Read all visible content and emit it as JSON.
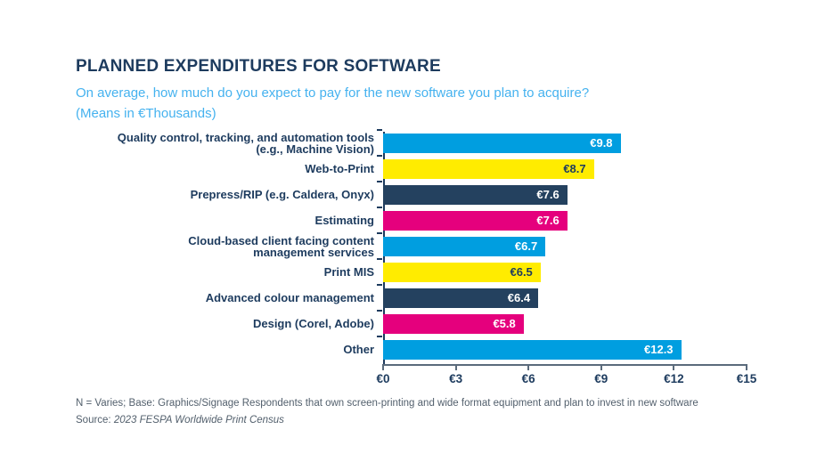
{
  "header": {
    "title": "PLANNED EXPENDITURES FOR SOFTWARE",
    "subtitle": "On average, how much do you expect to pay for the new software you plan to acquire?",
    "subtitle_units": "(Means in €Thousands)"
  },
  "chart_data": {
    "type": "bar",
    "orientation": "horizontal",
    "title": "PLANNED EXPENDITURES FOR SOFTWARE",
    "subtitle": "On average, how much do you expect to pay for the new software you plan to acquire? (Means in €Thousands)",
    "xlabel": "",
    "ylabel": "",
    "xlim": [
      0,
      15
    ],
    "x_ticks": [
      "€0",
      "€3",
      "€6",
      "€9",
      "€12",
      "€15"
    ],
    "grid": false,
    "legend": false,
    "categories": [
      "Quality control, tracking, and automation tools (e.g., Machine Vision)",
      "Web-to-Print",
      "Prepress/RIP (e.g. Caldera, Onyx)",
      "Estimating",
      "Cloud-based client facing content management services",
      "Print MIS",
      "Advanced colour management",
      "Design (Corel, Adobe)",
      "Other"
    ],
    "category_lines": [
      [
        "Quality control, tracking, and automation tools",
        "(e.g., Machine Vision)"
      ],
      [
        "Web-to-Print"
      ],
      [
        "Prepress/RIP (e.g. Caldera, Onyx)"
      ],
      [
        "Estimating"
      ],
      [
        "Cloud-based client facing content",
        "management services"
      ],
      [
        "Print MIS"
      ],
      [
        "Advanced colour management"
      ],
      [
        "Design (Corel, Adobe)"
      ],
      [
        "Other"
      ]
    ],
    "values": [
      9.8,
      8.7,
      7.6,
      7.6,
      6.7,
      6.5,
      6.4,
      5.8,
      12.3
    ],
    "value_labels": [
      "€9.8",
      "€8.7",
      "€7.6",
      "€7.6",
      "€6.7",
      "€6.5",
      "€6.4",
      "€5.8",
      "€12.3"
    ],
    "bar_colors": [
      "#009ee0",
      "#ffec00",
      "#24415f",
      "#e5007d",
      "#009ee0",
      "#ffec00",
      "#24415f",
      "#e5007d",
      "#009ee0"
    ],
    "value_label_colors": [
      "#ffffff",
      "#1d3b5e",
      "#ffffff",
      "#ffffff",
      "#ffffff",
      "#1d3b5e",
      "#ffffff",
      "#ffffff",
      "#ffffff"
    ]
  },
  "colors": {
    "navy": "#1d3b5e",
    "cyan": "#009ee0",
    "yellow": "#ffec00",
    "magenta": "#e5007d",
    "subtitle_blue": "#45b2ef",
    "axis_gray": "#5b6b7c",
    "footnote_gray": "#53606d"
  },
  "footer": {
    "note": "N = Varies; Base: Graphics/Signage Respondents that own screen-printing and wide format equipment and plan to invest in new software",
    "source_label": "Source: ",
    "source": "2023 FESPA Worldwide Print Census"
  }
}
